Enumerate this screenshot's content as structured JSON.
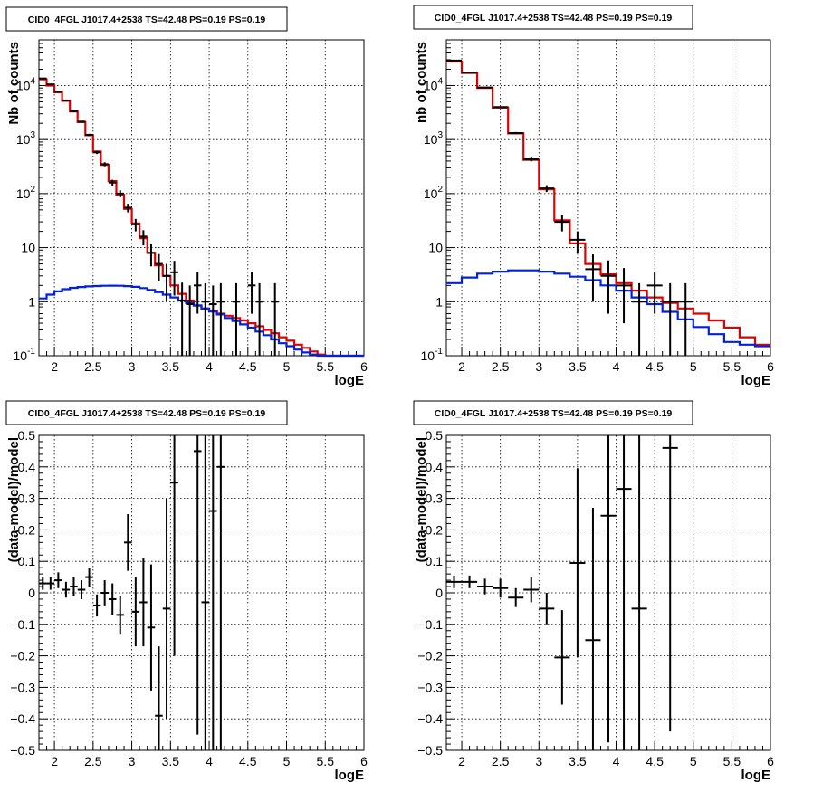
{
  "colors": {
    "data": "#000000",
    "model_total": "#e00000",
    "model_bkg": "#0022dd",
    "grid": "#000000"
  },
  "chart_data": [
    {
      "type": "line",
      "title": "CID0_4FGL J1017.4+2538 TS=42.48 PS=0.19 PS=0.19",
      "xlabel": "logE",
      "ylabel": "Nb of counts",
      "yscale": "log",
      "xlim": [
        1.8,
        6.0
      ],
      "ylim": [
        0.1,
        70000
      ],
      "xticks": [
        "2",
        "2.5",
        "3",
        "3.5",
        "4",
        "4.5",
        "5",
        "5.5",
        "6"
      ],
      "yticks": [
        "10^-1",
        "1",
        "10",
        "10^2",
        "10^3",
        "10^4"
      ],
      "grid": true,
      "series": [
        {
          "style": "step",
          "color": "red",
          "edges": [
            1.8,
            1.9,
            2.0,
            2.1,
            2.2,
            2.3,
            2.4,
            2.5,
            2.6,
            2.7,
            2.8,
            2.9,
            3.0,
            3.1,
            3.2,
            3.3,
            3.4,
            3.5,
            3.6,
            3.7,
            3.8,
            3.9,
            4.0,
            4.1,
            4.2,
            4.3,
            4.4,
            4.5,
            4.6,
            4.7,
            4.8,
            4.9,
            5.0,
            5.1,
            5.2,
            5.3,
            5.4,
            5.5,
            5.6,
            5.7,
            5.8,
            5.9,
            6.0
          ],
          "values": [
            13000,
            10000,
            7500,
            5200,
            3300,
            2100,
            1200,
            600,
            340,
            170,
            95,
            52,
            28,
            15,
            8,
            4.7,
            3,
            2,
            1.4,
            1.05,
            0.85,
            0.75,
            0.68,
            0.6,
            0.55,
            0.5,
            0.45,
            0.4,
            0.35,
            0.3,
            0.26,
            0.22,
            0.19,
            0.16,
            0.14,
            0.12,
            0.105,
            0.1,
            0.1,
            0.1,
            0.1,
            0.1
          ]
        },
        {
          "style": "step",
          "color": "blue",
          "edges": [
            1.8,
            1.9,
            2.0,
            2.1,
            2.2,
            2.3,
            2.4,
            2.5,
            2.6,
            2.7,
            2.8,
            2.9,
            3.0,
            3.1,
            3.2,
            3.3,
            3.4,
            3.5,
            3.6,
            3.7,
            3.8,
            3.9,
            4.0,
            4.1,
            4.2,
            4.3,
            4.4,
            4.5,
            4.6,
            4.7,
            4.8,
            4.9,
            5.0,
            5.1,
            5.2,
            5.3,
            5.4,
            5.5,
            5.6,
            5.7,
            5.8,
            5.9,
            6.0
          ],
          "values": [
            1.15,
            1.35,
            1.55,
            1.7,
            1.8,
            1.87,
            1.92,
            1.95,
            1.97,
            1.98,
            1.97,
            1.94,
            1.88,
            1.78,
            1.65,
            1.5,
            1.35,
            1.2,
            1.05,
            0.95,
            0.85,
            0.75,
            0.66,
            0.58,
            0.5,
            0.44,
            0.38,
            0.33,
            0.28,
            0.24,
            0.2,
            0.17,
            0.15,
            0.13,
            0.115,
            0.105,
            0.1,
            0.1,
            0.1,
            0.1,
            0.1,
            0.1
          ]
        },
        {
          "style": "points",
          "color": "black",
          "x": [
            1.85,
            1.95,
            2.05,
            2.15,
            2.25,
            2.35,
            2.45,
            2.55,
            2.65,
            2.75,
            2.85,
            2.95,
            3.05,
            3.15,
            3.25,
            3.35,
            3.45,
            3.55,
            3.65,
            3.75,
            3.85,
            3.95,
            4.05,
            4.15,
            4.35,
            4.55,
            4.65,
            4.85
          ],
          "y": [
            13500,
            10500,
            7700,
            5300,
            3350,
            2150,
            1220,
            580,
            350,
            160,
            100,
            55,
            27,
            16,
            8,
            5,
            3,
            3.5,
            1.05,
            0.9,
            2,
            1,
            0.9,
            1,
            1,
            2,
            1,
            1
          ],
          "yerr_lo": [
            200,
            180,
            160,
            130,
            100,
            80,
            60,
            40,
            30,
            20,
            15,
            10,
            7,
            5,
            3.5,
            2.6,
            2.0,
            2.2,
            1.05,
            0.9,
            1.4,
            1.0,
            0.9,
            1.0,
            1.0,
            1.4,
            1.0,
            1.0
          ],
          "yerr_hi": [
            200,
            180,
            160,
            130,
            100,
            80,
            60,
            40,
            30,
            20,
            15,
            10,
            7,
            5,
            3.5,
            2.6,
            2.0,
            2.2,
            1.2,
            1.1,
            1.6,
            1.2,
            1.1,
            1.2,
            1.2,
            1.6,
            1.2,
            1.2
          ]
        }
      ]
    },
    {
      "type": "line",
      "title": "CID0_4FGL J1017.4+2538 TS=42.48 PS=0.19 PS=0.19",
      "xlabel": "logE",
      "ylabel": "nb of counts",
      "yscale": "log",
      "xlim": [
        1.8,
        6.0
      ],
      "ylim": [
        0.1,
        70000
      ],
      "xticks": [
        "2",
        "2.5",
        "3",
        "3.5",
        "4",
        "4.5",
        "5",
        "5.5",
        "6"
      ],
      "yticks": [
        "10^-1",
        "1",
        "10",
        "10^2",
        "10^3",
        "10^4"
      ],
      "grid": true,
      "series": [
        {
          "style": "step",
          "color": "red",
          "edges": [
            1.8,
            2.0,
            2.2,
            2.4,
            2.6,
            2.8,
            3.0,
            3.2,
            3.4,
            3.6,
            3.8,
            4.0,
            4.2,
            4.4,
            4.6,
            4.8,
            5.0,
            5.2,
            5.4,
            5.6,
            5.8,
            6.0
          ],
          "values": [
            28000,
            17000,
            9000,
            3900,
            1300,
            420,
            120,
            32,
            12,
            5,
            3.2,
            2.2,
            1.6,
            1.2,
            0.95,
            0.75,
            0.6,
            0.45,
            0.33,
            0.22,
            0.16
          ],
          "_note": ""
        },
        {
          "style": "step",
          "color": "blue",
          "edges": [
            1.8,
            2.0,
            2.2,
            2.4,
            2.6,
            2.8,
            3.0,
            3.2,
            3.4,
            3.6,
            3.8,
            4.0,
            4.2,
            4.4,
            4.6,
            4.8,
            5.0,
            5.2,
            5.4,
            5.6,
            5.8,
            6.0
          ],
          "values": [
            2.2,
            2.8,
            3.3,
            3.6,
            3.8,
            3.8,
            3.6,
            3.3,
            2.9,
            2.5,
            2.0,
            1.6,
            1.2,
            0.9,
            0.65,
            0.47,
            0.34,
            0.25,
            0.18,
            0.16,
            0.15
          ]
        },
        {
          "style": "points",
          "color": "black",
          "x": [
            1.9,
            2.1,
            2.3,
            2.5,
            2.7,
            2.9,
            3.1,
            3.3,
            3.5,
            3.7,
            3.9,
            4.1,
            4.3,
            4.5,
            4.7,
            4.9
          ],
          "y": [
            29000,
            17500,
            9200,
            4000,
            1320,
            430,
            125,
            30,
            14,
            4,
            3,
            2,
            1,
            2,
            1,
            1
          ],
          "yerr_lo": [
            300,
            220,
            160,
            100,
            60,
            35,
            18,
            10,
            6,
            3,
            2.4,
            1.6,
            1.0,
            1.4,
            1.0,
            1.0
          ],
          "yerr_hi": [
            300,
            220,
            160,
            100,
            60,
            35,
            18,
            10,
            6,
            3.5,
            2.8,
            2.2,
            1.2,
            1.6,
            1.2,
            1.2
          ]
        }
      ]
    },
    {
      "type": "scatter",
      "title": "CID0_4FGL J1017.4+2538 TS=42.48 PS=0.19 PS=0.19",
      "xlabel": "logE",
      "ylabel": "(data-model)/model",
      "xlim": [
        1.8,
        6.0
      ],
      "ylim": [
        -0.5,
        0.5
      ],
      "xticks": [
        "2",
        "2.5",
        "3",
        "3.5",
        "4",
        "4.5",
        "5",
        "5.5",
        "6"
      ],
      "yticks": [
        "−0.5",
        "−0.4",
        "−0.3",
        "−0.2",
        "−0.1",
        "0",
        "0.1",
        "0.2",
        "0.3",
        "0.4",
        "0.5"
      ],
      "grid": true,
      "series": [
        {
          "style": "points",
          "color": "black",
          "xhalf": 0.05,
          "x": [
            1.85,
            1.95,
            2.05,
            2.15,
            2.25,
            2.35,
            2.45,
            2.55,
            2.65,
            2.75,
            2.85,
            2.95,
            3.05,
            3.15,
            3.25,
            3.35,
            3.45,
            3.55,
            3.85,
            3.95,
            4.05,
            4.15
          ],
          "y": [
            0.03,
            0.03,
            0.04,
            0.01,
            0.02,
            0.01,
            0.05,
            -0.04,
            0.0,
            -0.02,
            -0.07,
            0.16,
            -0.06,
            -0.03,
            -0.11,
            -0.39,
            -0.05,
            0.35,
            0.45,
            -0.03,
            0.26,
            0.4
          ],
          "err": [
            0.02,
            0.02,
            0.025,
            0.025,
            0.03,
            0.03,
            0.03,
            0.035,
            0.04,
            0.05,
            0.06,
            0.09,
            0.11,
            0.14,
            0.2,
            0.22,
            0.35,
            0.55,
            0.9,
            0.9,
            0.9,
            0.9
          ]
        }
      ]
    },
    {
      "type": "scatter",
      "title": "CID0_4FGL J1017.4+2538 TS=42.48 PS=0.19 PS=0.19",
      "xlabel": "logE",
      "ylabel": "(data-model)/model",
      "xlim": [
        1.8,
        6.0
      ],
      "ylim": [
        -0.5,
        0.5
      ],
      "xticks": [
        "2",
        "2.5",
        "3",
        "3.5",
        "4",
        "4.5",
        "5",
        "5.5",
        "6"
      ],
      "yticks": [
        "−0.5",
        "−0.4",
        "−0.3",
        "−0.2",
        "−0.1",
        "0",
        "0.1",
        "0.2",
        "0.3",
        "0.4",
        "0.5"
      ],
      "grid": true,
      "series": [
        {
          "style": "points",
          "color": "black",
          "xhalf": 0.1,
          "x": [
            1.9,
            2.1,
            2.3,
            2.5,
            2.7,
            2.9,
            3.1,
            3.3,
            3.5,
            3.7,
            3.9,
            4.1,
            4.3,
            4.7
          ],
          "y": [
            0.035,
            0.035,
            0.02,
            0.015,
            -0.015,
            0.01,
            -0.05,
            -0.205,
            0.095,
            -0.15,
            0.245,
            0.33,
            -0.05,
            0.46
          ],
          "err": [
            0.02,
            0.02,
            0.025,
            0.03,
            0.03,
            0.04,
            0.05,
            0.15,
            0.3,
            0.42,
            0.72,
            0.9,
            0.9,
            0.9
          ]
        }
      ]
    }
  ]
}
